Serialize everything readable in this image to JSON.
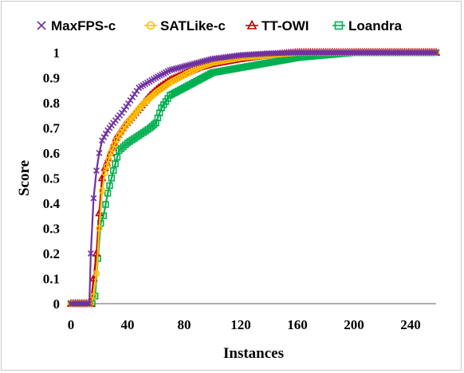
{
  "chart_data": {
    "type": "line",
    "title": "",
    "xlabel": "Instances",
    "ylabel": "Score",
    "xlim": [
      0,
      258
    ],
    "ylim": [
      0,
      1
    ],
    "xticks": [
      0,
      40,
      80,
      120,
      160,
      200,
      240
    ],
    "xtick_labels": [
      "0",
      "40",
      "80",
      "120",
      "160",
      "200",
      "240"
    ],
    "yticks": [
      0,
      0.1,
      0.2,
      0.3,
      0.4,
      0.5,
      0.6,
      0.7,
      0.8,
      0.9,
      1
    ],
    "ytick_labels": [
      "0",
      "0.1",
      "0.2",
      "0.3",
      "0.4",
      "0.5",
      "0.6",
      "0.7",
      "0.8",
      "0.9",
      "1"
    ],
    "grid": false,
    "legend_position": "top",
    "series": [
      {
        "name": "MaxFPS-c",
        "color": "#7030a0",
        "marker": "x-mark",
        "x": [
          0,
          13,
          14,
          16,
          18,
          20,
          22,
          26,
          30,
          36,
          42,
          48,
          54,
          60,
          70,
          80,
          90,
          100,
          120,
          140,
          160,
          190,
          258
        ],
        "y": [
          0,
          0,
          0.2,
          0.42,
          0.53,
          0.6,
          0.65,
          0.69,
          0.72,
          0.76,
          0.81,
          0.86,
          0.88,
          0.9,
          0.93,
          0.945,
          0.96,
          0.975,
          0.99,
          0.997,
          1,
          1,
          1
        ]
      },
      {
        "name": "SATLike-c",
        "color": "#ffc000",
        "marker": "circle",
        "x": [
          0,
          14,
          16,
          18,
          20,
          22,
          24,
          28,
          34,
          40,
          50,
          60,
          70,
          80,
          90,
          100,
          120,
          140,
          160,
          180,
          200,
          258
        ],
        "y": [
          0,
          0,
          0.03,
          0.12,
          0.3,
          0.45,
          0.52,
          0.6,
          0.67,
          0.72,
          0.79,
          0.84,
          0.88,
          0.91,
          0.94,
          0.96,
          0.98,
          0.99,
          1,
          1,
          1,
          1
        ]
      },
      {
        "name": "TT-OWI",
        "color": "#c00000",
        "marker": "triangle",
        "x": [
          0,
          14,
          16,
          18,
          20,
          22,
          24,
          28,
          32,
          38,
          44,
          50,
          56,
          62,
          70,
          80,
          90,
          100,
          120,
          140,
          160,
          180,
          200,
          258
        ],
        "y": [
          0,
          0,
          0.1,
          0.2,
          0.36,
          0.5,
          0.54,
          0.6,
          0.66,
          0.71,
          0.75,
          0.79,
          0.83,
          0.86,
          0.89,
          0.915,
          0.94,
          0.955,
          0.975,
          0.99,
          1,
          1,
          1,
          1
        ]
      },
      {
        "name": "Loandra",
        "color": "#00b050",
        "marker": "square",
        "x": [
          0,
          15,
          17,
          19,
          21,
          23,
          26,
          30,
          34,
          40,
          48,
          56,
          60,
          64,
          70,
          80,
          90,
          100,
          120,
          140,
          160,
          180,
          200,
          258
        ],
        "y": [
          0,
          0,
          0.03,
          0.18,
          0.32,
          0.35,
          0.44,
          0.53,
          0.61,
          0.64,
          0.67,
          0.7,
          0.72,
          0.78,
          0.83,
          0.86,
          0.89,
          0.92,
          0.94,
          0.96,
          0.98,
          0.99,
          1,
          1
        ]
      }
    ]
  }
}
